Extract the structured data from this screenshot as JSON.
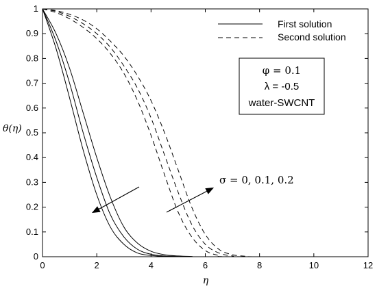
{
  "chart_data": {
    "type": "line",
    "title": "",
    "xlabel": "η",
    "ylabel": "θ(η)",
    "xlim": [
      0,
      12
    ],
    "ylim": [
      0,
      1
    ],
    "xticks": [
      "0",
      "2",
      "4",
      "6",
      "8",
      "10",
      "12"
    ],
    "yticks": [
      "0",
      "0.1",
      "0.2",
      "0.3",
      "0.4",
      "0.5",
      "0.6",
      "0.7",
      "0.8",
      "0.9",
      "1"
    ],
    "grid": false,
    "legend": {
      "position": "top-right",
      "entries": [
        {
          "label": "First solution",
          "style": "solid"
        },
        {
          "label": "Second solution",
          "style": "dashed"
        }
      ]
    },
    "parameter_box": [
      "φ = 0.1",
      "λ = -0.5",
      "water-SWCNT"
    ],
    "annotation": "σ = 0, 0.1, 0.2",
    "series": [
      {
        "group": "First solution",
        "style": "solid",
        "x": [
          0,
          0.5,
          1,
          1.5,
          2,
          2.5,
          3,
          3.5,
          4,
          4.5,
          5
        ],
        "y": [
          1,
          0.84,
          0.64,
          0.43,
          0.25,
          0.12,
          0.05,
          0.015,
          0.005,
          0.001,
          0
        ]
      },
      {
        "group": "First solution",
        "style": "solid",
        "x": [
          0,
          0.5,
          1,
          1.5,
          2,
          2.5,
          3,
          3.5,
          4,
          4.5,
          5,
          5.5
        ],
        "y": [
          1,
          0.87,
          0.7,
          0.5,
          0.32,
          0.17,
          0.08,
          0.03,
          0.01,
          0.003,
          0.001,
          0
        ]
      },
      {
        "group": "First solution",
        "style": "solid",
        "x": [
          0,
          0.5,
          1,
          1.5,
          2,
          2.5,
          3,
          3.5,
          4,
          4.5,
          5,
          5.5,
          6
        ],
        "y": [
          1,
          0.9,
          0.76,
          0.58,
          0.4,
          0.24,
          0.12,
          0.055,
          0.022,
          0.008,
          0.003,
          0.001,
          0
        ]
      },
      {
        "group": "Second solution",
        "style": "dashed",
        "x": [
          0,
          0.5,
          1,
          1.5,
          2,
          2.5,
          3,
          3.5,
          4,
          4.5,
          5,
          5.5,
          6,
          6.5,
          7
        ],
        "y": [
          1,
          0.985,
          0.96,
          0.925,
          0.88,
          0.82,
          0.74,
          0.63,
          0.49,
          0.33,
          0.18,
          0.08,
          0.025,
          0.005,
          0
        ]
      },
      {
        "group": "Second solution",
        "style": "dashed",
        "x": [
          0,
          0.5,
          1,
          1.5,
          2,
          2.5,
          3,
          3.5,
          4,
          4.5,
          5,
          5.5,
          6,
          6.5,
          7,
          7.5
        ],
        "y": [
          1,
          0.99,
          0.97,
          0.94,
          0.9,
          0.845,
          0.77,
          0.68,
          0.56,
          0.41,
          0.26,
          0.13,
          0.05,
          0.015,
          0.003,
          0
        ]
      },
      {
        "group": "Second solution",
        "style": "dashed",
        "x": [
          0,
          0.5,
          1,
          1.5,
          2,
          2.5,
          3,
          3.5,
          4,
          4.5,
          5,
          5.5,
          6,
          6.5,
          7,
          7.5,
          8
        ],
        "y": [
          1,
          0.993,
          0.978,
          0.955,
          0.92,
          0.87,
          0.81,
          0.73,
          0.63,
          0.5,
          0.35,
          0.2,
          0.09,
          0.03,
          0.008,
          0.002,
          0
        ]
      }
    ]
  }
}
